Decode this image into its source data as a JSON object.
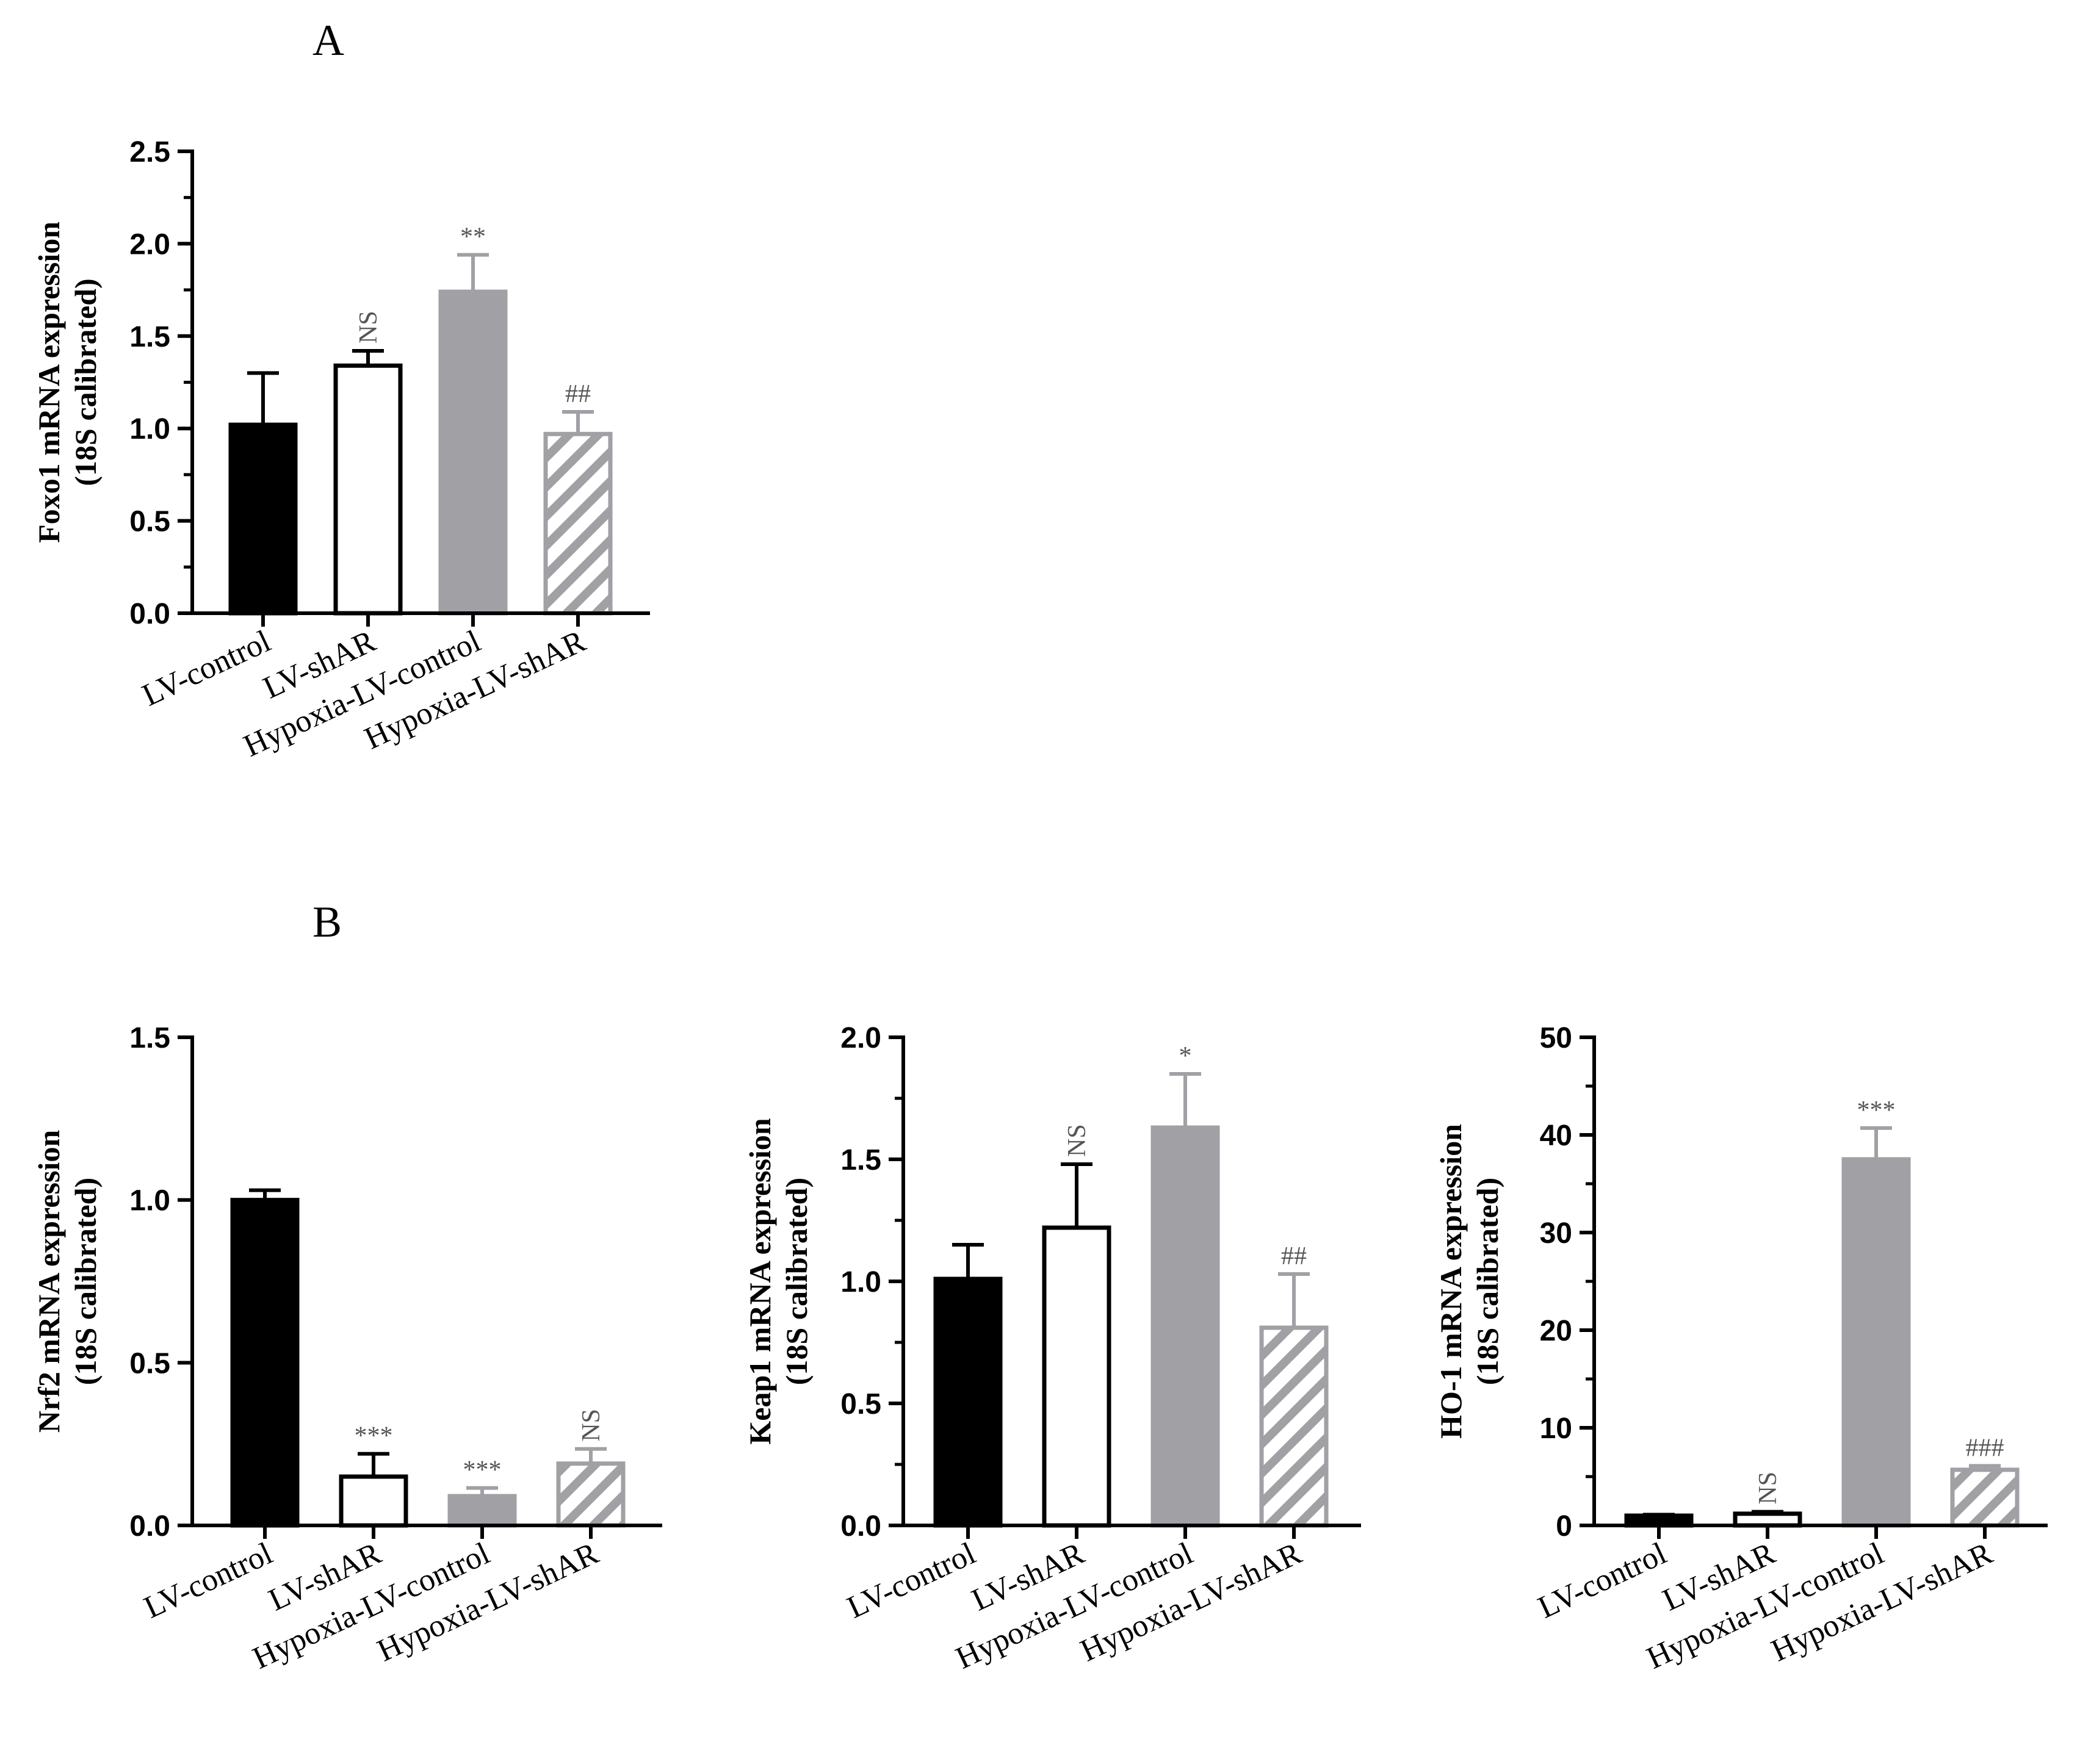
{
  "figure": {
    "panels": [
      {
        "id": "A",
        "label": "A"
      },
      {
        "id": "B",
        "label": "B"
      }
    ]
  },
  "colors": {
    "black": "#000000",
    "white": "#ffffff",
    "gray": "#a0a0a5",
    "hatch": "#a0a0a5",
    "annot_gray": "#555555"
  },
  "chart_data": [
    {
      "panel": "A",
      "type": "bar",
      "categories": [
        "LV-control",
        "LV-shAR",
        "Hypoxia-LV-control",
        "Hypoxia-LV-shAR"
      ],
      "values": [
        1.02,
        1.34,
        1.74,
        0.97
      ],
      "errors": [
        0.28,
        0.08,
        0.2,
        0.12
      ],
      "annotations": [
        "",
        "NS",
        "**",
        "##"
      ],
      "annotation_rotated": [
        false,
        true,
        false,
        false
      ],
      "fills": [
        "black",
        "white",
        "gray",
        "hatch"
      ],
      "ylabel_line1": "Foxo1 mRNA expression",
      "ylabel_line2": "(18S calibrated)",
      "ylim": [
        0,
        2.5
      ],
      "yticks": [
        "0.0",
        "0.5",
        "1.0",
        "1.5",
        "2.0",
        "2.5"
      ],
      "ytick_values": [
        0,
        0.5,
        1.0,
        1.5,
        2.0,
        2.5
      ],
      "minor_ticks": true
    },
    {
      "panel": "B",
      "type": "bar",
      "categories": [
        "LV-control",
        "LV-shAR",
        "Hypoxia-LV-control",
        "Hypoxia-LV-shAR"
      ],
      "values": [
        1.0,
        0.15,
        0.09,
        0.19
      ],
      "errors": [
        0.03,
        0.07,
        0.025,
        0.045
      ],
      "annotations": [
        "",
        "***",
        "***",
        "NS"
      ],
      "annotation_rotated": [
        false,
        false,
        false,
        true
      ],
      "fills": [
        "black",
        "white",
        "gray",
        "hatch"
      ],
      "ylabel_line1": "Nrf2 mRNA expression",
      "ylabel_line2": "(18S calibrated)",
      "ylim": [
        0,
        1.5
      ],
      "yticks": [
        "0.0",
        "0.5",
        "1.0",
        "1.5"
      ],
      "ytick_values": [
        0,
        0.5,
        1.0,
        1.5
      ],
      "minor_ticks": false
    },
    {
      "panel": "B",
      "type": "bar",
      "categories": [
        "LV-control",
        "LV-shAR",
        "Hypoxia-LV-control",
        "Hypoxia-LV-shAR"
      ],
      "values": [
        1.01,
        1.22,
        1.63,
        0.81
      ],
      "errors": [
        0.14,
        0.26,
        0.22,
        0.22
      ],
      "annotations": [
        "",
        "NS",
        "*",
        "##"
      ],
      "annotation_rotated": [
        false,
        true,
        false,
        false
      ],
      "fills": [
        "black",
        "white",
        "gray",
        "hatch"
      ],
      "ylabel_line1": "Keap1 mRNA expression",
      "ylabel_line2": "(18S calibrated)",
      "ylim": [
        0,
        2.0
      ],
      "yticks": [
        "0.0",
        "0.5",
        "1.0",
        "1.5",
        "2.0"
      ],
      "ytick_values": [
        0,
        0.5,
        1.0,
        1.5,
        2.0
      ],
      "minor_ticks": true
    },
    {
      "panel": "B",
      "type": "bar",
      "categories": [
        "LV-control",
        "LV-shAR",
        "Hypoxia-LV-control",
        "Hypoxia-LV-shAR"
      ],
      "values": [
        1.0,
        1.2,
        37.5,
        5.7
      ],
      "errors": [
        0.1,
        0.2,
        3.2,
        0.4
      ],
      "annotations": [
        "",
        "NS",
        "***",
        "###"
      ],
      "annotation_rotated": [
        false,
        true,
        false,
        false
      ],
      "fills": [
        "black",
        "white",
        "gray",
        "hatch"
      ],
      "ylabel_line1": "HO-1 mRNA expression",
      "ylabel_line2": "(18S calibrated)",
      "ylim": [
        0,
        50
      ],
      "yticks": [
        "0",
        "10",
        "20",
        "30",
        "40",
        "50"
      ],
      "ytick_values": [
        0,
        10,
        20,
        30,
        40,
        50
      ],
      "minor_ticks": true
    }
  ]
}
